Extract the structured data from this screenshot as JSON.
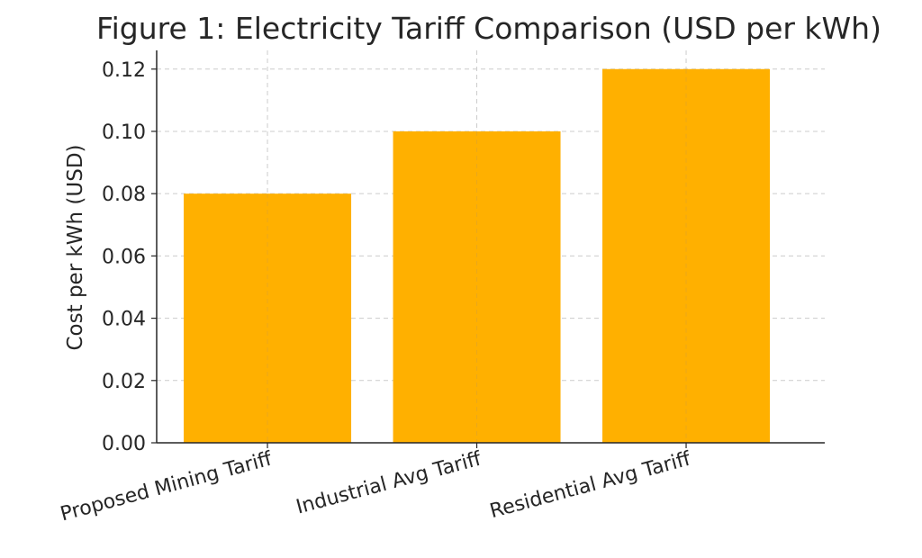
{
  "chart_data": {
    "type": "bar",
    "title": "Figure 1: Electricity Tariff Comparison (USD per kWh)",
    "xlabel": "",
    "ylabel": "Cost per kWh (USD)",
    "categories": [
      "Proposed Mining Tariff",
      "Industrial Avg Tariff",
      "Residential Avg Tariff"
    ],
    "values": [
      0.08,
      0.1,
      0.12
    ],
    "ylim": [
      0,
      0.126
    ],
    "yticks": [
      0.0,
      0.02,
      0.04,
      0.06,
      0.08,
      0.1,
      0.12
    ],
    "ytick_labels": [
      "0.00",
      "0.02",
      "0.04",
      "0.06",
      "0.08",
      "0.10",
      "0.12"
    ],
    "grid": true,
    "bar_color": "#FFB000",
    "grid_color": "#cccccc"
  }
}
